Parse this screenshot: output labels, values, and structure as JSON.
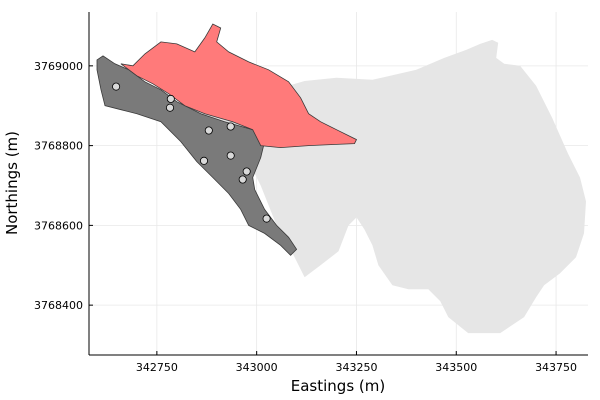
{
  "chart_data": {
    "type": "map",
    "title": "",
    "xlabel": "Eastings (m)",
    "ylabel": "Northings (m)",
    "xlim": [
      342580,
      343830
    ],
    "ylim": [
      368275,
      3769135
    ],
    "x_ticks": [
      342750,
      343000,
      343250,
      343500,
      343750
    ],
    "y_ticks": [
      3768400,
      3768600,
      3768800,
      3769000
    ],
    "x_tick_labels": [
      "342750",
      "343000",
      "343250",
      "343500",
      "343750"
    ],
    "y_tick_labels": [
      "3768400",
      "3768600",
      "3768800",
      "3769000"
    ],
    "grid": true,
    "legend": "none",
    "colors": {
      "background_region": "#e6e6e6",
      "dark_region": "#7a7a7a",
      "highlight_region": "#ff7a7a",
      "points": "#d9d9d9"
    },
    "regions": [
      {
        "role": "full-area",
        "color": "#e6e6e6",
        "polygon": [
          [
            342790,
            3768965
          ],
          [
            342900,
            3768945
          ],
          [
            342975,
            3768950
          ],
          [
            343045,
            3768940
          ],
          [
            343120,
            3768962
          ],
          [
            343200,
            3768970
          ],
          [
            343290,
            3768965
          ],
          [
            343400,
            3768990
          ],
          [
            343470,
            3769020
          ],
          [
            343525,
            3769040
          ],
          [
            343560,
            3769055
          ],
          [
            343590,
            3769065
          ],
          [
            343605,
            3769058
          ],
          [
            343600,
            3769020
          ],
          [
            343620,
            3769005
          ],
          [
            343660,
            3769000
          ],
          [
            343700,
            3768950
          ],
          [
            343740,
            3768870
          ],
          [
            343780,
            3768780
          ],
          [
            343810,
            3768720
          ],
          [
            343825,
            3768660
          ],
          [
            343820,
            3768580
          ],
          [
            343800,
            3768520
          ],
          [
            343760,
            3768480
          ],
          [
            343720,
            3768450
          ],
          [
            343700,
            3768420
          ],
          [
            343670,
            3768370
          ],
          [
            343610,
            3768330
          ],
          [
            343530,
            3768330
          ],
          [
            343480,
            3768370
          ],
          [
            343460,
            3768410
          ],
          [
            343430,
            3768440
          ],
          [
            343380,
            3768440
          ],
          [
            343340,
            3768450
          ],
          [
            343305,
            3768500
          ],
          [
            343290,
            3768550
          ],
          [
            343270,
            3768590
          ],
          [
            343250,
            3768620
          ],
          [
            343230,
            3768600
          ],
          [
            343205,
            3768535
          ],
          [
            343160,
            3768500
          ],
          [
            343120,
            3768470
          ],
          [
            343090,
            3768530
          ],
          [
            343050,
            3768600
          ],
          [
            343010,
            3768700
          ],
          [
            342960,
            3768800
          ],
          [
            342890,
            3768860
          ],
          [
            342810,
            3768900
          ]
        ]
      },
      {
        "role": "dark-area",
        "color": "#7a7a7a",
        "polygon": [
          [
            342600,
            3769015
          ],
          [
            342615,
            3769025
          ],
          [
            342645,
            3769005
          ],
          [
            342680,
            3768990
          ],
          [
            342720,
            3768960
          ],
          [
            342760,
            3768940
          ],
          [
            342800,
            3768910
          ],
          [
            342860,
            3768880
          ],
          [
            342920,
            3768860
          ],
          [
            342990,
            3768840
          ],
          [
            343020,
            3768810
          ],
          [
            343010,
            3768770
          ],
          [
            342990,
            3768720
          ],
          [
            342995,
            3768690
          ],
          [
            343020,
            3768640
          ],
          [
            343050,
            3768600
          ],
          [
            343080,
            3768570
          ],
          [
            343100,
            3768540
          ],
          [
            343085,
            3768525
          ],
          [
            343060,
            3768550
          ],
          [
            343020,
            3768580
          ],
          [
            342980,
            3768600
          ],
          [
            342960,
            3768640
          ],
          [
            342930,
            3768680
          ],
          [
            342890,
            3768720
          ],
          [
            342850,
            3768760
          ],
          [
            342810,
            3768810
          ],
          [
            342760,
            3768860
          ],
          [
            342700,
            3768880
          ],
          [
            342660,
            3768890
          ],
          [
            342620,
            3768900
          ],
          [
            342610,
            3768940
          ],
          [
            342600,
            3768990
          ]
        ]
      },
      {
        "role": "highlight-area",
        "color": "#ff7a7a",
        "polygon": [
          [
            342660,
            3769005
          ],
          [
            342690,
            3769000
          ],
          [
            342720,
            3769030
          ],
          [
            342760,
            3769060
          ],
          [
            342800,
            3769055
          ],
          [
            342845,
            3769035
          ],
          [
            342870,
            3769070
          ],
          [
            342890,
            3769105
          ],
          [
            342910,
            3769095
          ],
          [
            342900,
            3769060
          ],
          [
            342930,
            3769035
          ],
          [
            342980,
            3769010
          ],
          [
            343030,
            3768990
          ],
          [
            343080,
            3768960
          ],
          [
            343110,
            3768920
          ],
          [
            343130,
            3768880
          ],
          [
            343160,
            3768860
          ],
          [
            343200,
            3768840
          ],
          [
            343250,
            3768815
          ],
          [
            343245,
            3768805
          ],
          [
            343200,
            3768803
          ],
          [
            343130,
            3768800
          ],
          [
            343060,
            3768795
          ],
          [
            343010,
            3768800
          ],
          [
            342990,
            3768840
          ],
          [
            342940,
            3768860
          ],
          [
            342870,
            3768880
          ],
          [
            342820,
            3768900
          ],
          [
            342780,
            3768930
          ],
          [
            342740,
            3768955
          ],
          [
            342700,
            3768975
          ]
        ]
      }
    ],
    "points": [
      {
        "x": 342648,
        "y": 3768948
      },
      {
        "x": 342785,
        "y": 3768917
      },
      {
        "x": 342783,
        "y": 3768895
      },
      {
        "x": 342880,
        "y": 3768838
      },
      {
        "x": 342935,
        "y": 3768848
      },
      {
        "x": 342935,
        "y": 3768775
      },
      {
        "x": 342868,
        "y": 3768762
      },
      {
        "x": 342975,
        "y": 3768735
      },
      {
        "x": 342965,
        "y": 3768715
      },
      {
        "x": 343025,
        "y": 3768617
      }
    ]
  }
}
